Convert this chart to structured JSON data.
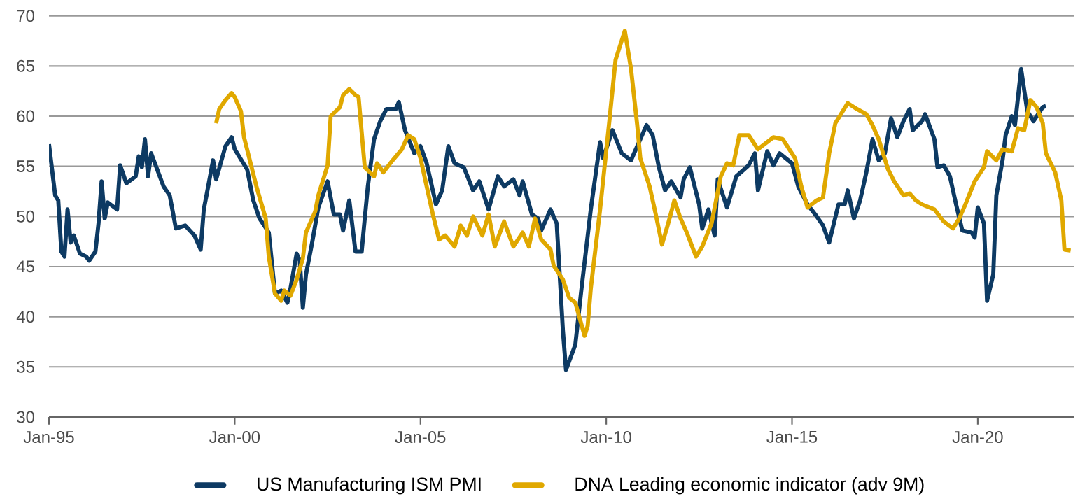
{
  "chart_data": {
    "type": "line",
    "ylim": [
      30,
      70
    ],
    "yticks": [
      30,
      35,
      40,
      45,
      50,
      55,
      60,
      65,
      70
    ],
    "xlim": [
      "1995-01",
      "2022-08"
    ],
    "xticks": [
      {
        "value": "1995-01",
        "label": "Jan-95"
      },
      {
        "value": "2000-01",
        "label": "Jan-00"
      },
      {
        "value": "2005-01",
        "label": "Jan-05"
      },
      {
        "value": "2010-01",
        "label": "Jan-10"
      },
      {
        "value": "2015-01",
        "label": "Jan-15"
      },
      {
        "value": "2020-01",
        "label": "Jan-20"
      }
    ],
    "grid": "y",
    "legend": "bottom",
    "marker": "none",
    "line_style": "solid",
    "series": [
      {
        "name": "US Manufacturing ISM PMI",
        "color": "#0d3a63",
        "x": [
          "1995-01",
          "1995-03",
          "1995-04",
          "1995-05",
          "1995-06",
          "1995-07",
          "1995-08",
          "1995-09",
          "1995-11",
          "1996-01",
          "1996-02",
          "1996-04",
          "1996-05",
          "1996-06",
          "1996-07",
          "1996-08",
          "1996-11",
          "1996-12",
          "1997-02",
          "1997-05",
          "1997-06",
          "1997-07",
          "1997-08",
          "1997-09",
          "1997-10",
          "1998-02",
          "1998-04",
          "1998-06",
          "1998-09",
          "1998-12",
          "1999-02",
          "1999-03",
          "1999-04",
          "1999-06",
          "1999-07",
          "1999-10",
          "1999-12",
          "2000-01",
          "2000-05",
          "2000-07",
          "2000-09",
          "2000-12",
          "2001-02",
          "2001-04",
          "2001-06",
          "2001-07",
          "2001-09",
          "2001-10",
          "2001-11",
          "2001-12",
          "2002-02",
          "2002-04",
          "2002-07",
          "2002-09",
          "2002-11",
          "2002-12",
          "2003-02",
          "2003-04",
          "2003-06",
          "2003-07",
          "2003-08",
          "2003-10",
          "2003-12",
          "2004-02",
          "2004-05",
          "2004-06",
          "2004-08",
          "2004-11",
          "2005-01",
          "2005-03",
          "2005-06",
          "2005-08",
          "2005-10",
          "2005-12",
          "2006-03",
          "2006-06",
          "2006-08",
          "2006-11",
          "2007-02",
          "2007-04",
          "2007-07",
          "2007-09",
          "2007-10",
          "2008-01",
          "2008-03",
          "2008-04",
          "2008-07",
          "2008-09",
          "2008-11",
          "2008-12",
          "2009-03",
          "2009-05",
          "2009-08",
          "2009-11",
          "2009-12",
          "2010-03",
          "2010-06",
          "2010-09",
          "2010-11",
          "2011-02",
          "2011-04",
          "2011-06",
          "2011-08",
          "2011-10",
          "2012-01",
          "2012-02",
          "2012-04",
          "2012-07",
          "2012-08",
          "2012-10",
          "2012-12",
          "2013-01",
          "2013-04",
          "2013-07",
          "2013-11",
          "2014-01",
          "2014-02",
          "2014-05",
          "2014-07",
          "2014-09",
          "2014-11",
          "2015-01",
          "2015-03",
          "2015-06",
          "2015-09",
          "2015-11",
          "2016-01",
          "2016-04",
          "2016-06",
          "2016-07",
          "2016-09",
          "2016-11",
          "2017-01",
          "2017-03",
          "2017-05",
          "2017-07",
          "2017-09",
          "2017-11",
          "2018-01",
          "2018-03",
          "2018-04",
          "2018-07",
          "2018-08",
          "2018-11",
          "2018-12",
          "2019-02",
          "2019-04",
          "2019-06",
          "2019-08",
          "2019-11",
          "2019-12",
          "2020-01",
          "2020-03",
          "2020-04",
          "2020-06",
          "2020-07",
          "2020-09",
          "2020-10",
          "2020-12",
          "2021-01",
          "2021-03",
          "2021-05",
          "2021-07",
          "2021-10",
          "2021-11"
        ],
        "values": [
          57.2,
          52.1,
          51.6,
          46.5,
          46,
          50.7,
          47.4,
          48.1,
          46.3,
          46,
          45.6,
          46.5,
          49.3,
          53.5,
          49.8,
          51.4,
          50.7,
          55.1,
          53.3,
          54,
          56,
          54.9,
          57.7,
          54,
          56.3,
          53,
          52.1,
          48.8,
          49.1,
          48.1,
          46.7,
          50.7,
          52.3,
          55.6,
          53.7,
          57,
          57.9,
          56.7,
          54.7,
          51.6,
          49.8,
          48.4,
          42.3,
          42.6,
          41.4,
          42.8,
          46.3,
          45.6,
          40.9,
          44.2,
          47.4,
          50.9,
          53.5,
          50.2,
          50.2,
          48.6,
          51.6,
          46.5,
          46.5,
          49.8,
          53,
          57.7,
          59.5,
          60.7,
          60.7,
          61.4,
          58.6,
          56.3,
          57,
          55.3,
          51.2,
          52.6,
          57,
          55.3,
          54.9,
          52.6,
          53.5,
          50.7,
          54,
          53,
          53.7,
          52.1,
          53.5,
          50.2,
          49.8,
          48.6,
          50.7,
          49.3,
          38.6,
          34.7,
          37.2,
          42.8,
          50.7,
          57.4,
          55.8,
          58.6,
          56.3,
          55.6,
          57,
          59.1,
          58.1,
          54.9,
          52.6,
          53.5,
          51.9,
          53.7,
          54.9,
          51.2,
          48.8,
          50.7,
          48.1,
          53.7,
          50.9,
          54,
          55.1,
          56.3,
          52.6,
          56.5,
          55.1,
          56.3,
          55.8,
          55.3,
          53,
          51.2,
          50,
          49.1,
          47.4,
          51.2,
          51.2,
          52.6,
          49.8,
          51.6,
          54.4,
          57.7,
          55.6,
          56.3,
          59.8,
          57.9,
          59.5,
          60.7,
          58.6,
          59.5,
          60.2,
          57.7,
          54.9,
          55.1,
          54,
          51.2,
          48.6,
          48.4,
          47.9,
          50.9,
          49.3,
          41.6,
          44.2,
          52.1,
          55.6,
          58.1,
          60,
          59.1,
          64.7,
          60.5,
          59.5,
          60.9,
          61
        ]
      },
      {
        "name": "DNA Leading economic indicator (adv 9M)",
        "color": "#e0a800",
        "x": [
          "1999-07",
          "1999-08",
          "1999-10",
          "1999-12",
          "2000-01",
          "2000-03",
          "2000-04",
          "2000-08",
          "2000-11",
          "2000-12",
          "2001-02",
          "2001-04",
          "2001-05",
          "2001-07",
          "2001-09",
          "2001-11",
          "2001-12",
          "2002-03",
          "2002-04",
          "2002-07",
          "2002-08",
          "2002-11",
          "2002-12",
          "2003-02",
          "2003-04",
          "2003-05",
          "2003-07",
          "2003-10",
          "2003-11",
          "2004-01",
          "2004-04",
          "2004-07",
          "2004-09",
          "2004-11",
          "2005-01",
          "2005-03",
          "2005-05",
          "2005-07",
          "2005-09",
          "2005-12",
          "2006-02",
          "2006-04",
          "2006-06",
          "2006-09",
          "2006-11",
          "2007-01",
          "2007-04",
          "2007-07",
          "2007-10",
          "2007-12",
          "2008-02",
          "2008-04",
          "2008-07",
          "2008-08",
          "2008-11",
          "2009-01",
          "2009-03",
          "2009-06",
          "2009-07",
          "2009-08",
          "2009-11",
          "2010-02",
          "2010-04",
          "2010-07",
          "2010-09",
          "2010-11",
          "2010-12",
          "2011-03",
          "2011-05",
          "2011-07",
          "2011-09",
          "2011-11",
          "2012-01",
          "2012-03",
          "2012-06",
          "2012-08",
          "2012-11",
          "2013-02",
          "2013-04",
          "2013-06",
          "2013-08",
          "2013-11",
          "2014-02",
          "2014-07",
          "2014-10",
          "2015-02",
          "2015-04",
          "2015-06",
          "2015-09",
          "2015-11",
          "2016-01",
          "2016-03",
          "2016-07",
          "2016-10",
          "2017-01",
          "2017-03",
          "2017-05",
          "2017-08",
          "2017-10",
          "2018-01",
          "2018-03",
          "2018-05",
          "2018-07",
          "2018-11",
          "2019-02",
          "2019-05",
          "2019-07",
          "2019-09",
          "2019-12",
          "2020-03",
          "2020-04",
          "2020-07",
          "2020-09",
          "2020-12",
          "2021-02",
          "2021-04",
          "2021-06",
          "2021-08",
          "2021-10",
          "2021-11",
          "2022-02",
          "2022-04",
          "2022-05",
          "2022-07"
        ],
        "values": [
          59.3,
          60.7,
          61.6,
          62.3,
          61.9,
          60.5,
          57.9,
          53,
          49.8,
          46,
          42.3,
          41.6,
          42.6,
          42.1,
          43.7,
          45.8,
          48.4,
          50.5,
          52.1,
          55.1,
          60,
          60.9,
          62.1,
          62.7,
          62.1,
          61.9,
          54.9,
          54,
          55.3,
          54.4,
          55.6,
          56.7,
          58.1,
          57.7,
          55.8,
          53,
          50.2,
          47.7,
          48.1,
          47,
          49.1,
          48.1,
          50,
          48.1,
          50.2,
          47,
          49.5,
          47,
          48.4,
          47,
          49.8,
          47.7,
          46.7,
          45.1,
          43.7,
          41.9,
          41.4,
          38.1,
          39.1,
          42.8,
          50.7,
          59.5,
          65.6,
          68.5,
          64.7,
          59.1,
          55.8,
          53,
          50.2,
          47.2,
          49.3,
          51.6,
          49.8,
          48.4,
          46,
          47,
          49.3,
          54,
          55.3,
          55.1,
          58.1,
          58.1,
          56.7,
          57.9,
          57.7,
          55.8,
          53,
          50.9,
          51.6,
          51.9,
          56.3,
          59.3,
          61.3,
          60.7,
          60.2,
          59.1,
          57.7,
          54.7,
          53.5,
          52.1,
          52.3,
          51.6,
          51.2,
          50.7,
          49.5,
          48.8,
          49.8,
          51.2,
          53.5,
          54.9,
          56.5,
          55.6,
          56.7,
          56.5,
          58.8,
          58.6,
          61.6,
          60.9,
          59.3,
          56.3,
          54.4,
          51.6,
          46.7,
          46.6
        ]
      }
    ]
  }
}
